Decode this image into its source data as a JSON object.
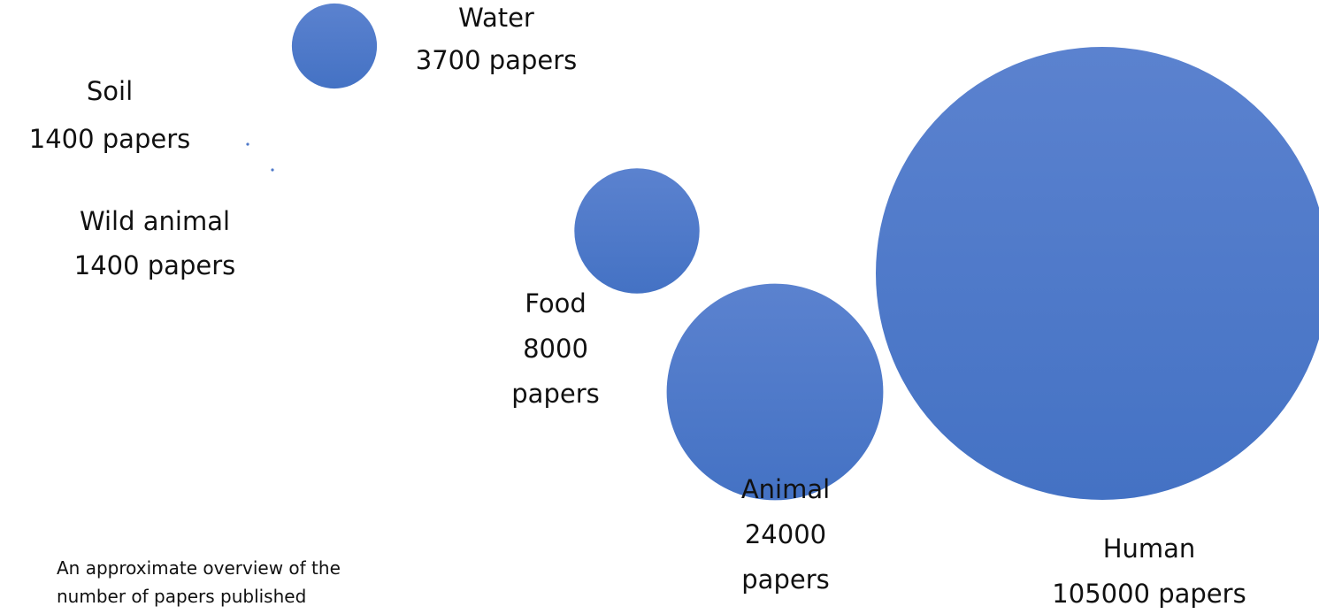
{
  "chart_data": {
    "type": "bubble",
    "unit": "papers",
    "series": [
      {
        "category": "Water",
        "papers": 3700,
        "label_lines": [
          "Water",
          "3700 papers"
        ]
      },
      {
        "category": "Soil",
        "papers": 1400,
        "label_lines": [
          "Soil",
          "1400 papers"
        ]
      },
      {
        "category": "Wild animal",
        "papers": 1400,
        "label_lines": [
          "Wild animal",
          "1400 papers"
        ]
      },
      {
        "category": "Food",
        "papers": 8000,
        "label_lines": [
          "Food",
          "8000",
          "papers"
        ]
      },
      {
        "category": "Animal",
        "papers": 24000,
        "label_lines": [
          "Animal",
          "24000",
          "papers"
        ]
      },
      {
        "category": "Human",
        "papers": 105000,
        "label_lines": [
          "Human",
          "105000 papers"
        ]
      }
    ],
    "bubble_color": "#4472C4",
    "bubble_highlight": "#5B82CF"
  },
  "note": {
    "lines": [
      "An approximate overview of the",
      "number of papers published"
    ]
  }
}
